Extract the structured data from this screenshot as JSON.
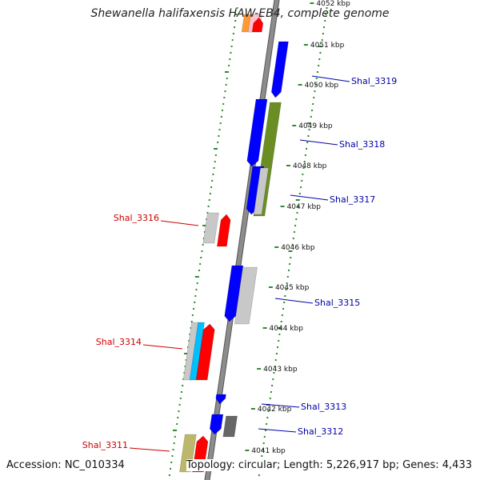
{
  "title": "Shewanella halifaxensis HAW-EB4, complete genome",
  "footer": {
    "accession": "Accession: NC_010334",
    "summary": "Topology: circular; Length: 5,226,917 bp; Genes: 4,433"
  },
  "colors": {
    "backbone": "#8c8c8c",
    "ring_dots": "#2e8b2e",
    "forward_gene": "#0000ff",
    "reverse_gene": "#ff0000",
    "pseudo_gene": "#c8c8c8",
    "olive_feature": "#6b8e23",
    "khaki_feature": "#bdb76b",
    "cyan_feature": "#00bfff",
    "orange_feature": "#ff9933",
    "pink_feature": "#ffc0cb",
    "dark_gray_feature": "#666666",
    "label_forward": "#0000aa",
    "label_reverse": "#cc0000"
  },
  "scale_labels": [
    "4052 kbp",
    "4051 kbp",
    "4050 kbp",
    "4049 kbp",
    "4048 kbp",
    "4047 kbp",
    "4046 kbp",
    "4045 kbp",
    "4044 kbp",
    "4043 kbp",
    "4042 kbp",
    "4041 kbp"
  ],
  "gene_labels": [
    {
      "text": "Shal_3319",
      "strand": "forward"
    },
    {
      "text": "Shal_3318",
      "strand": "forward"
    },
    {
      "text": "Shal_3317",
      "strand": "forward"
    },
    {
      "text": "Shal_3316",
      "strand": "reverse"
    },
    {
      "text": "Shal_3315",
      "strand": "forward"
    },
    {
      "text": "Shal_3314",
      "strand": "reverse"
    },
    {
      "text": "Shal_3313",
      "strand": "forward"
    },
    {
      "text": "Shal_3312",
      "strand": "forward"
    },
    {
      "text": "Shal_3311",
      "strand": "reverse"
    }
  ]
}
